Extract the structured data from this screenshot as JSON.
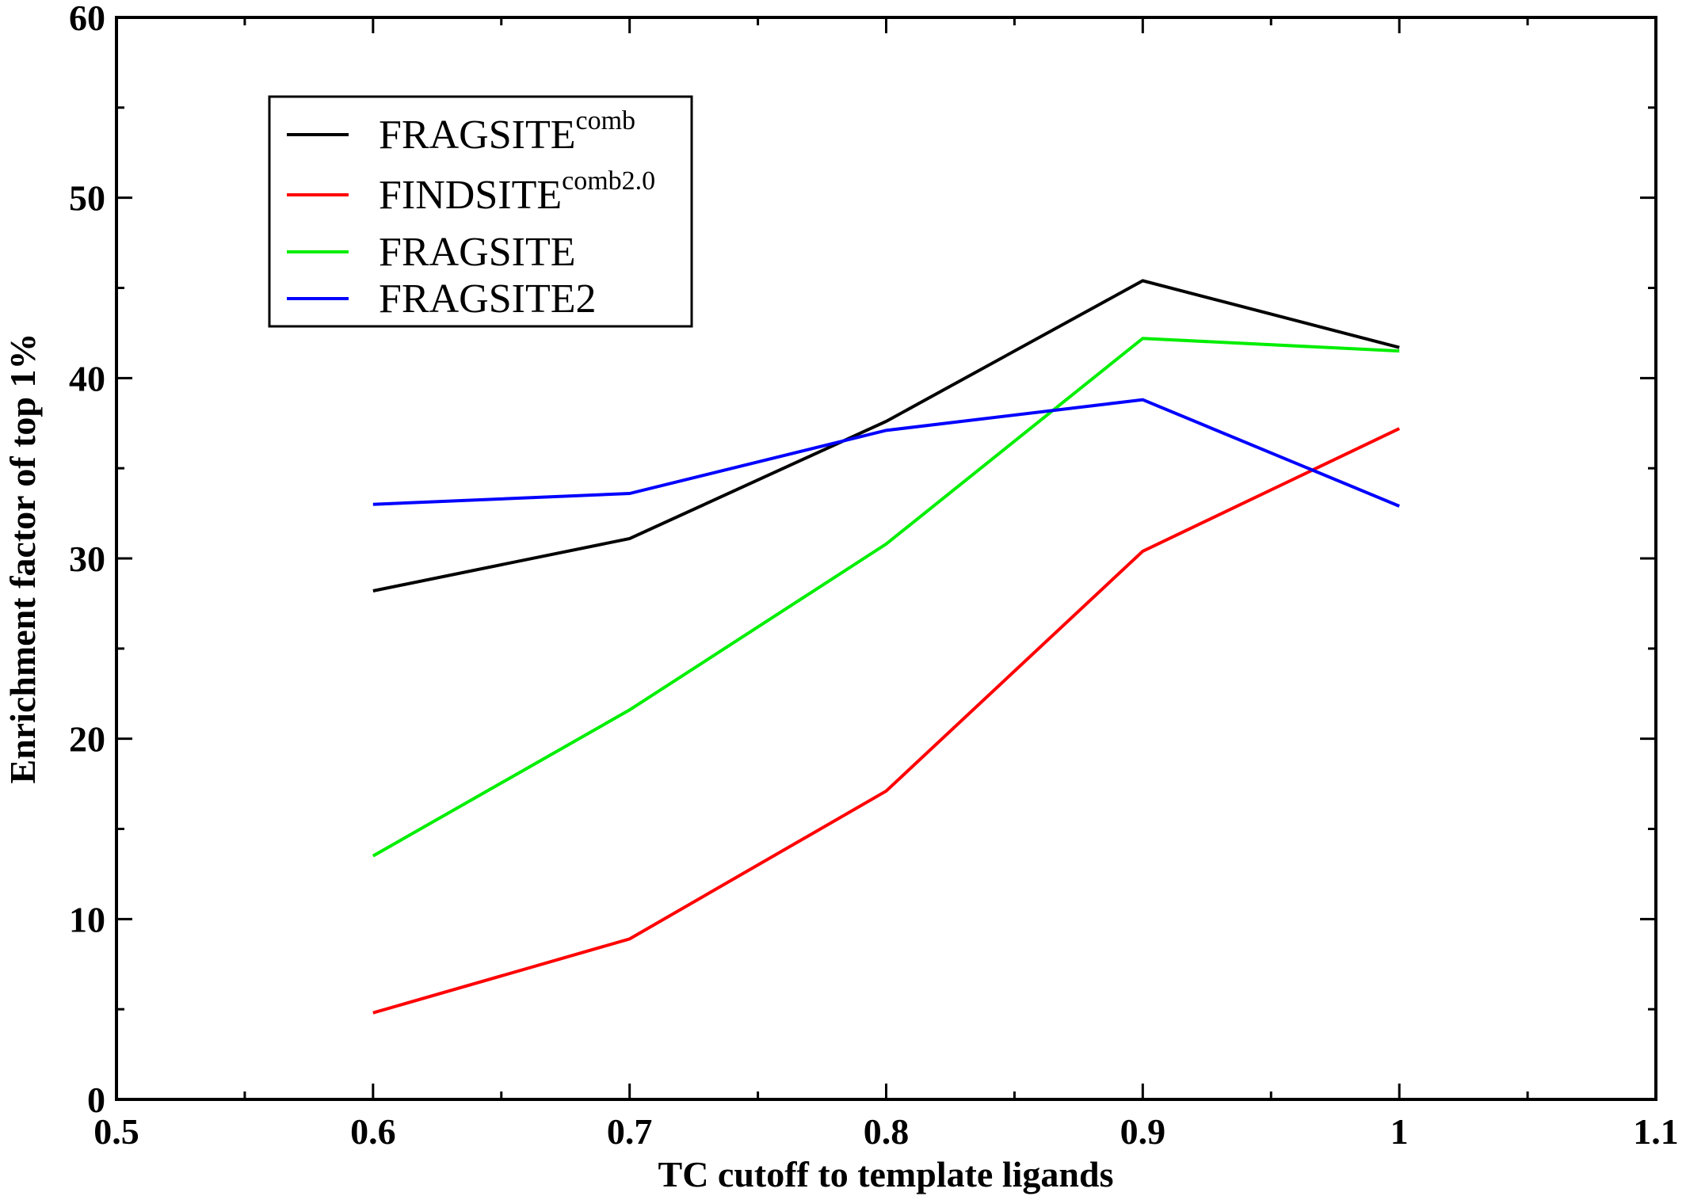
{
  "chart_data": {
    "type": "line",
    "xlabel": "TC cutoff to template ligands",
    "ylabel": "Enrichment factor of top 1%",
    "xlim": [
      0.5,
      1.1
    ],
    "ylim": [
      0,
      60
    ],
    "xticks": [
      "0.5",
      "0.6",
      "0.7",
      "0.8",
      "0.9",
      "1",
      "1.1"
    ],
    "yticks": [
      "0",
      "10",
      "20",
      "30",
      "40",
      "50",
      "60"
    ],
    "grid": false,
    "legend_position": "top-left",
    "x": [
      0.6,
      0.7,
      0.8,
      0.9,
      1.0
    ],
    "series": [
      {
        "name": "FRAGSITE",
        "superscript": "comb",
        "color": "#000000",
        "values": [
          28.2,
          31.1,
          37.6,
          45.4,
          41.7
        ]
      },
      {
        "name": "FINDSITE",
        "superscript": "comb2.0",
        "color": "#ff0000",
        "values": [
          4.8,
          8.9,
          17.1,
          30.4,
          37.2
        ]
      },
      {
        "name": "FRAGSITE",
        "superscript": "",
        "color": "#00ee00",
        "values": [
          13.5,
          21.6,
          30.8,
          42.2,
          41.5
        ]
      },
      {
        "name": "FRAGSITE2",
        "superscript": "",
        "color": "#0000ff",
        "values": [
          33.0,
          33.6,
          37.1,
          38.8,
          32.9
        ]
      }
    ]
  }
}
